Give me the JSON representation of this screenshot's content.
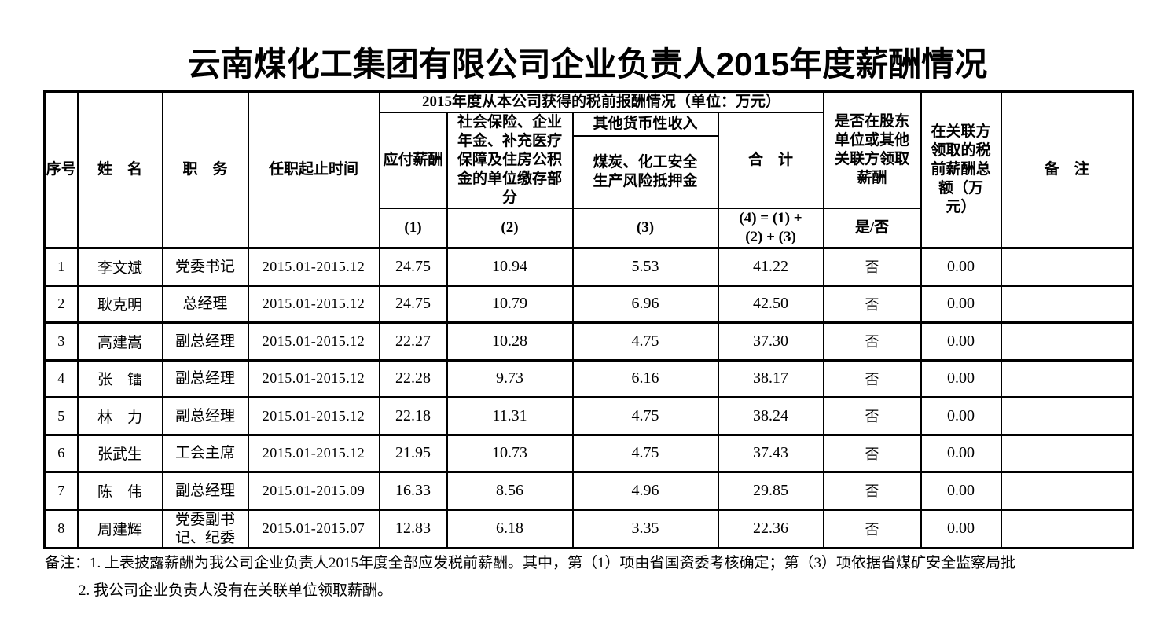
{
  "title": "云南煤化工集团有限公司企业负责人2015年度薪酬情况",
  "table": {
    "headers": {
      "seq": "序号",
      "name": "姓　名",
      "position": "职　务",
      "term": "任职起止时间",
      "group": "2015年度从本公司获得的税前报酬情况（单位：万元）",
      "payable": "应付薪酬",
      "social": "社会保险、企业年金、补充医疗保障及住房公积金的单位缴存部分",
      "other_income": "其他货币性收入",
      "deposit": "煤炭、化工安全生产风险抵押金",
      "total": "合　计",
      "related_question": "是否在股东单位或其他关联方领取薪酬",
      "related_amount": "在关联方领取的税前薪酬总额（万元）",
      "remarks": "备　注",
      "c1": "(1)",
      "c2": "(2)",
      "c3": "(3)",
      "c4": "(4) = (1) +\n(2) + (3)",
      "yes_no": "是/否"
    },
    "rows": [
      {
        "seq": "1",
        "name": "李文斌",
        "position": "党委书记",
        "term": "2015.01-2015.12",
        "payable": "24.75",
        "social": "10.94",
        "deposit": "5.53",
        "total": "41.22",
        "related": "否",
        "related_amount": "0.00",
        "remark": ""
      },
      {
        "seq": "2",
        "name": "耿克明",
        "position": "总经理",
        "term": "2015.01-2015.12",
        "payable": "24.75",
        "social": "10.79",
        "deposit": "6.96",
        "total": "42.50",
        "related": "否",
        "related_amount": "0.00",
        "remark": ""
      },
      {
        "seq": "3",
        "name": "高建嵩",
        "position": "副总经理",
        "term": "2015.01-2015.12",
        "payable": "22.27",
        "social": "10.28",
        "deposit": "4.75",
        "total": "37.30",
        "related": "否",
        "related_amount": "0.00",
        "remark": ""
      },
      {
        "seq": "4",
        "name": "张　镭",
        "position": "副总经理",
        "term": "2015.01-2015.12",
        "payable": "22.28",
        "social": "9.73",
        "deposit": "6.16",
        "total": "38.17",
        "related": "否",
        "related_amount": "0.00",
        "remark": ""
      },
      {
        "seq": "5",
        "name": "林　力",
        "position": "副总经理",
        "term": "2015.01-2015.12",
        "payable": "22.18",
        "social": "11.31",
        "deposit": "4.75",
        "total": "38.24",
        "related": "否",
        "related_amount": "0.00",
        "remark": ""
      },
      {
        "seq": "6",
        "name": "张武生",
        "position": "工会主席",
        "term": "2015.01-2015.12",
        "payable": "21.95",
        "social": "10.73",
        "deposit": "4.75",
        "total": "37.43",
        "related": "否",
        "related_amount": "0.00",
        "remark": ""
      },
      {
        "seq": "7",
        "name": "陈　伟",
        "position": "副总经理",
        "term": "2015.01-2015.09",
        "payable": "16.33",
        "social": "8.56",
        "deposit": "4.96",
        "total": "29.85",
        "related": "否",
        "related_amount": "0.00",
        "remark": ""
      },
      {
        "seq": "8",
        "name": "周建辉",
        "position": "党委副书记、纪委",
        "term": "2015.01-2015.07",
        "payable": "12.83",
        "social": "6.18",
        "deposit": "3.35",
        "total": "22.36",
        "related": "否",
        "related_amount": "0.00",
        "remark": ""
      }
    ]
  },
  "notes": {
    "prefix": "备注：",
    "items": [
      "1. 上表披露薪酬为我公司企业负责人2015年度全部应发税前薪酬。其中，第（1）项由省国资委考核确定；第（3）项依据省煤矿安全监察局批",
      "2. 我公司企业负责人没有在关联单位领取薪酬。"
    ]
  }
}
